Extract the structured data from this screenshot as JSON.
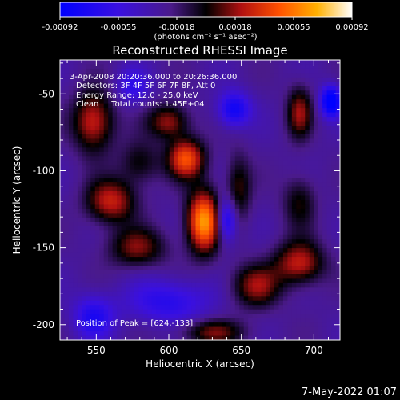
{
  "colorbar": {
    "tick_labels": [
      "-0.00092",
      "-0.00055",
      "-0.00018",
      "0.00018",
      "0.00055",
      "0.00092"
    ],
    "unit_label": "(photons cm⁻² s⁻¹ asec⁻²)"
  },
  "annotations": {
    "time": "3-Apr-2008 20:20:36.000 to 20:26:36.000",
    "detectors": "Detectors: 3F 4F 5F 6F 7F 8F, Att 0",
    "energy": "Energy Range: 12.0 - 25.0 keV",
    "clean": "Clean     Total counts: 1.45E+04",
    "peak": "Position of Peak = [624,-133]"
  },
  "footer": {
    "date": "7-May-2022 01:07"
  },
  "colors": {
    "background": "#000000",
    "text": "#ffffff"
  },
  "chart_data": {
    "type": "heatmap",
    "title": "Reconstructed RHESSI Image",
    "xlabel": "Heliocentric X (arcsec)",
    "ylabel": "Heliocentric Y (arcsec)",
    "xlim": [
      525,
      718
    ],
    "ylim": [
      -210,
      -28
    ],
    "xticks": [
      550,
      600,
      650,
      700
    ],
    "yticks": [
      -50,
      -100,
      -150,
      -200
    ],
    "xtick_labels": [
      "550",
      "600",
      "650",
      "700"
    ],
    "ytick_labels": [
      "-50",
      "-100",
      "-150",
      "-200"
    ],
    "value_range": [
      -0.00092,
      0.00092
    ],
    "colormap": "blue-purple-red-yellow-white (RHESSI)",
    "peak": [
      624,
      -133
    ],
    "sources": [
      {
        "x": 624,
        "y": -133,
        "amp": 0.00092,
        "sx": 8,
        "sy": 14
      },
      {
        "x": 612,
        "y": -92,
        "amp": 0.0007,
        "sx": 9,
        "sy": 9
      },
      {
        "x": 600,
        "y": -68,
        "amp": 0.00048,
        "sx": 10,
        "sy": 8
      },
      {
        "x": 560,
        "y": -120,
        "amp": 0.00055,
        "sx": 12,
        "sy": 10
      },
      {
        "x": 548,
        "y": -68,
        "amp": 0.00058,
        "sx": 10,
        "sy": 14
      },
      {
        "x": 578,
        "y": -150,
        "amp": 0.00042,
        "sx": 14,
        "sy": 9
      },
      {
        "x": 648,
        "y": -112,
        "amp": 0.00035,
        "sx": 6,
        "sy": 16
      },
      {
        "x": 690,
        "y": -160,
        "amp": 0.00055,
        "sx": 12,
        "sy": 10
      },
      {
        "x": 660,
        "y": -175,
        "amp": 0.00045,
        "sx": 12,
        "sy": 10
      },
      {
        "x": 690,
        "y": -62,
        "amp": 0.00045,
        "sx": 6,
        "sy": 12
      },
      {
        "x": 690,
        "y": -120,
        "amp": 0.0003,
        "sx": 8,
        "sy": 12
      },
      {
        "x": 580,
        "y": -95,
        "amp": 0.0003,
        "sx": 10,
        "sy": 10
      },
      {
        "x": 630,
        "y": -205,
        "amp": 0.0004,
        "sx": 16,
        "sy": 6
      },
      {
        "x": 600,
        "y": -185,
        "amp": -0.0004,
        "sx": 20,
        "sy": 10
      },
      {
        "x": 645,
        "y": -60,
        "amp": -0.00055,
        "sx": 8,
        "sy": 8
      },
      {
        "x": 640,
        "y": -132,
        "amp": -0.0006,
        "sx": 5,
        "sy": 10
      },
      {
        "x": 712,
        "y": -55,
        "amp": -0.0008,
        "sx": 5,
        "sy": 7
      },
      {
        "x": 548,
        "y": -195,
        "amp": -0.00045,
        "sx": 10,
        "sy": 10
      },
      {
        "x": 575,
        "y": -45,
        "amp": -0.00035,
        "sx": 8,
        "sy": 8
      }
    ]
  }
}
